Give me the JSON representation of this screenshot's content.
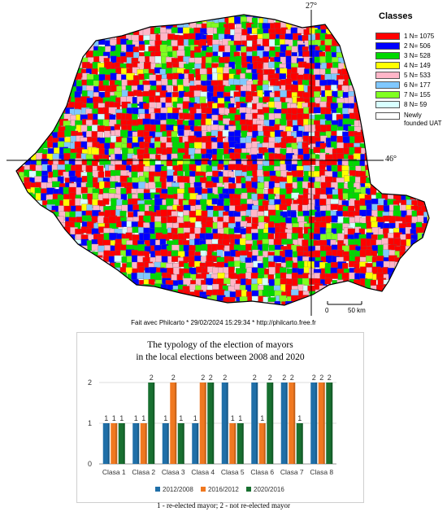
{
  "map": {
    "meridian_label": "27°",
    "parallel_label": "46°",
    "credit": "Fait avec Philcarto * 29/02/2024 15:29:34 * http://philcarto.free.fr",
    "scale": {
      "zero": "0",
      "distance": "50 km"
    }
  },
  "legend": {
    "title": "Classes",
    "items": [
      {
        "label": "1 N= 1075",
        "color": "#ff0000"
      },
      {
        "label": "2 N= 506",
        "color": "#0000ff"
      },
      {
        "label": "3 N= 528",
        "color": "#00d800"
      },
      {
        "label": "4 N= 149",
        "color": "#ffff00"
      },
      {
        "label": "5 N= 533",
        "color": "#ffb6c8"
      },
      {
        "label": "6 N= 177",
        "color": "#80c8ff"
      },
      {
        "label": "7 N= 155",
        "color": "#80ff20"
      },
      {
        "label": "8 N= 59",
        "color": "#d8ffff"
      },
      {
        "label": "Newly founded UAT",
        "color": "#ffffff"
      }
    ]
  },
  "chart_data": {
    "type": "bar",
    "title_line1": "The typology of the election of mayors",
    "title_line2": "in the local elections between 2008 and 2020",
    "categories": [
      "Clasa 1",
      "Clasa 2",
      "Clasa 3",
      "Clasa 4",
      "Clasa 5",
      "Clasa 6",
      "Clasa 7",
      "Clasa 8"
    ],
    "series": [
      {
        "name": "2012/2008",
        "color": "#1f6fa8",
        "values": [
          1,
          1,
          1,
          1,
          2,
          2,
          2,
          2
        ]
      },
      {
        "name": "2016/2012",
        "color": "#f07820",
        "values": [
          1,
          1,
          2,
          2,
          1,
          1,
          2,
          2
        ]
      },
      {
        "name": "2020/2016",
        "color": "#187030",
        "values": [
          1,
          2,
          1,
          2,
          1,
          2,
          1,
          2
        ]
      }
    ],
    "yticks": [
      "0",
      "1",
      "2"
    ],
    "ylim": [
      0,
      2
    ],
    "data_labels": true,
    "legend_position": "bottom",
    "footnote": "1 - re-elected mayor; 2 - not re-elected mayor"
  }
}
